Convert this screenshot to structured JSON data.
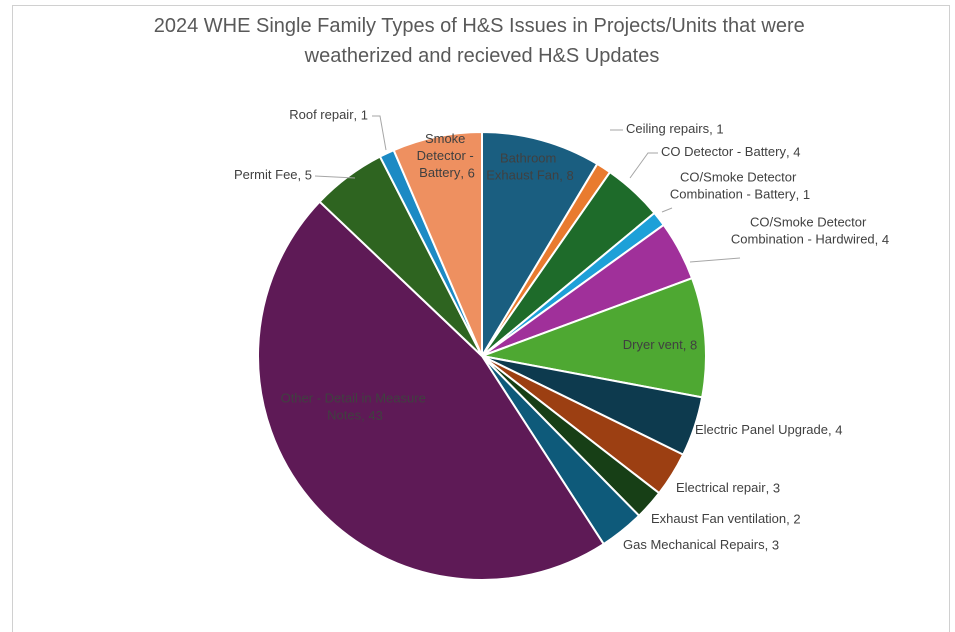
{
  "chart_data": {
    "type": "pie",
    "title": "2024 WHE Single Family Types of H&S Issues in Projects/Units that were weatherized and recieved H&S Updates",
    "categories": [
      "Bathroom Exhaust Fan",
      "Ceiling repairs",
      "CO Detector - Battery",
      "CO/Smoke Detector Combination - Battery",
      "CO/Smoke Detector Combination - Hardwired",
      "Dryer vent",
      "Electric Panel Upgrade",
      "Electrical repair",
      "Exhaust Fan ventilation",
      "Gas Mechanical Repairs",
      "Other - Detail in Measure Notes",
      "Permit Fee",
      "Roof repair",
      "Smoke Detector - Battery"
    ],
    "values": [
      8,
      1,
      4,
      1,
      4,
      8,
      4,
      3,
      2,
      3,
      43,
      5,
      1,
      6
    ],
    "colors": [
      "#1a5e80",
      "#e97b2f",
      "#1e6b2a",
      "#1da0d8",
      "#a0309a",
      "#4ea832",
      "#0d3a4e",
      "#9c3f12",
      "#173f16",
      "#0e5a7a",
      "#5e1a56",
      "#2e6420",
      "#1c8ac4",
      "#ee9060"
    ],
    "label_separator": ", "
  }
}
